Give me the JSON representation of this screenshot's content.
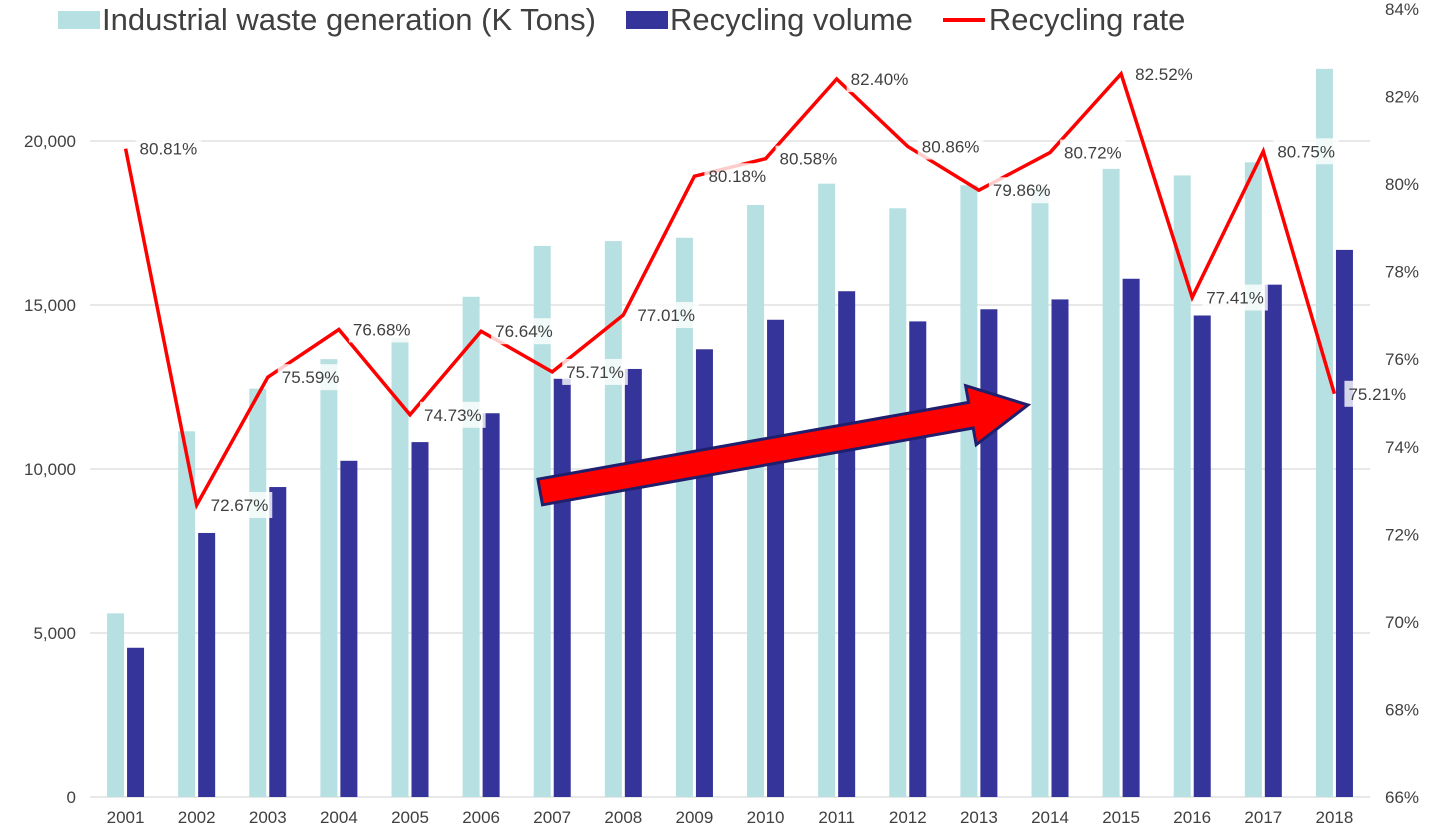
{
  "chart_data": {
    "type": "bar",
    "categories": [
      "2001",
      "2002",
      "2003",
      "2004",
      "2005",
      "2006",
      "2007",
      "2008",
      "2009",
      "2010",
      "2011",
      "2012",
      "2013",
      "2014",
      "2015",
      "2016",
      "2017",
      "2018"
    ],
    "series": [
      {
        "name": "Industrial waste generation (K Tons)",
        "type": "bar",
        "axis": "left",
        "color": "#b7e0e2",
        "values": [
          5600,
          11150,
          12450,
          13350,
          14000,
          15250,
          16800,
          16950,
          17050,
          18050,
          18700,
          17950,
          18650,
          18600,
          19150,
          18950,
          19350,
          22200
        ]
      },
      {
        "name": "Recycling volume",
        "type": "bar",
        "axis": "left",
        "color": "#34349a",
        "values": [
          4550,
          8050,
          9450,
          10250,
          10820,
          11700,
          12750,
          13050,
          13650,
          14550,
          15420,
          14500,
          14870,
          15170,
          15800,
          14680,
          15620,
          16680
        ]
      },
      {
        "name": "Recycling rate",
        "type": "line",
        "axis": "right",
        "color": "#ff0000",
        "values": [
          80.81,
          72.67,
          75.59,
          76.68,
          74.73,
          76.64,
          75.71,
          77.01,
          80.18,
          80.58,
          82.4,
          80.86,
          79.86,
          80.72,
          82.52,
          77.41,
          80.75,
          75.21
        ],
        "labels": [
          "80.81%",
          "72.67%",
          "75.59%",
          "76.68%",
          "74.73%",
          "76.64%",
          "75.71%",
          "77.01%",
          "80.18%",
          "80.58%",
          "82.40%",
          "80.86%",
          "79.86%",
          "80.72%",
          "82.52%",
          "77.41%",
          "80.75%",
          "75.21%"
        ]
      }
    ],
    "y_left": {
      "min": 0,
      "max": 20000,
      "ticks": [
        0,
        5000,
        10000,
        15000,
        20000
      ],
      "tick_labels": [
        "0",
        "5,000",
        "10,000",
        "15,000",
        "20,000"
      ]
    },
    "y_right": {
      "min": 66,
      "max": 84,
      "ticks": [
        66,
        68,
        70,
        72,
        74,
        76,
        78,
        80,
        82,
        84
      ],
      "tick_labels": [
        "66%",
        "68%",
        "70%",
        "72%",
        "74%",
        "76%",
        "78%",
        "80%",
        "82%",
        "84%"
      ]
    },
    "grid": true,
    "legend_position": "top",
    "annotation": {
      "type": "arrow",
      "color": "#ff0000",
      "outline": "#1f1f6e",
      "from": {
        "x": "2007",
        "y": 9300
      },
      "to": {
        "x": "2014",
        "y": 11950
      }
    }
  }
}
